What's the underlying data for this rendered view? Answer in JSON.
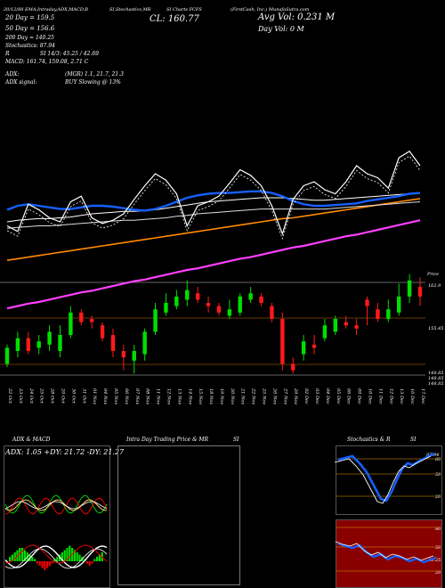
{
  "header": {
    "line1_left": "20/12/88  EMA,Intraday,ADX,MACD,B",
    "line1_mid": "SI,Stochastics,MR",
    "line1_mid2": "SI Charts FCFS",
    "line1_right": "(FirstCash, Inc.) MunafaSutra.com",
    "ma20": "20 Day = 159.5",
    "ma50": "50 Day = 156.6",
    "ma200": "200 Day = 140.25",
    "stoch": "Stochastics: 87.94",
    "rsi": "SI 14/3: 45.25 / 42.69",
    "r_label": "R",
    "macd": "MACD: 161.74, 159.08, 2.71 C",
    "adx": "ADX:",
    "adx_mgr": "(MGR) 1.1, 21.7, 21.3",
    "adx_signal": "ADX signal:",
    "buy_signal": "BUY Slowing @ 13%",
    "close": "CL: 160.77",
    "avg_vol": "Avg Vol: 0.231 M",
    "day_vol": "Day Vol: 0  M"
  },
  "price_labels": [
    "Price",
    "162.9",
    "155.45",
    "148.85",
    "148.85",
    "148.85"
  ],
  "chart_data": {
    "type": "candlestick",
    "dates": [
      "22 Oct",
      "23 Oct",
      "24 Oct",
      "25 Oct",
      "28 Oct",
      "29 Oct",
      "30 Oct",
      "31 Oct",
      "01 Nov",
      "04 Nov",
      "05 Nov",
      "06 Nov",
      "07 Nov",
      "08 Nov",
      "11 Nov",
      "12 Nov",
      "13 Nov",
      "14 Nov",
      "15 Nov",
      "18 Nov",
      "19 Nov",
      "20 Nov",
      "21 Nov",
      "22 Nov",
      "25 Nov",
      "26 Nov",
      "27 Nov",
      "29 Nov",
      "02 Dec",
      "03 Dec",
      "04 Dec",
      "05 Dec",
      "06 Dec",
      "09 Dec",
      "10 Dec",
      "11 Dec",
      "12 Dec",
      "13 Dec",
      "16 Dec",
      "17 Dec"
    ],
    "open": [
      150.0,
      152.0,
      154.0,
      152.5,
      153.0,
      152.0,
      154.5,
      158.0,
      157.0,
      156.0,
      154.5,
      152.0,
      150.5,
      151.5,
      155.0,
      158.0,
      159.0,
      160.0,
      161.0,
      159.5,
      159.0,
      157.5,
      158.0,
      160.0,
      160.5,
      159.0,
      157.0,
      150.0,
      151.5,
      153.0,
      154.0,
      155.0,
      156.5,
      156.0,
      160.0,
      158.5,
      157.0,
      158.0,
      160.5,
      162.0
    ],
    "close": [
      152.5,
      154.0,
      152.0,
      153.5,
      155.0,
      154.5,
      158.0,
      156.5,
      156.5,
      154.0,
      152.0,
      151.0,
      152.0,
      155.0,
      158.5,
      159.5,
      160.5,
      161.5,
      160.0,
      159.0,
      158.0,
      158.5,
      160.5,
      161.0,
      159.5,
      157.0,
      150.0,
      149.0,
      153.5,
      152.5,
      156.0,
      157.0,
      156.0,
      155.5,
      159.0,
      157.0,
      158.5,
      160.5,
      163.0,
      160.5
    ],
    "high": [
      153.0,
      155.0,
      155.0,
      154.5,
      156.0,
      156.0,
      159.0,
      158.5,
      157.5,
      156.5,
      155.5,
      153.0,
      153.0,
      155.5,
      159.5,
      161.0,
      161.5,
      163.0,
      162.0,
      160.5,
      159.5,
      160.0,
      161.0,
      162.0,
      161.0,
      159.5,
      158.0,
      151.0,
      154.5,
      154.5,
      157.0,
      157.5,
      157.5,
      157.0,
      160.5,
      159.5,
      160.0,
      162.5,
      164.0,
      163.5
    ],
    "low": [
      149.5,
      151.0,
      151.5,
      151.5,
      152.0,
      151.0,
      154.0,
      156.0,
      155.5,
      153.5,
      151.0,
      149.0,
      148.5,
      150.5,
      154.5,
      157.5,
      158.5,
      159.0,
      159.5,
      158.0,
      157.5,
      157.0,
      157.5,
      159.5,
      159.0,
      156.5,
      149.0,
      148.5,
      150.5,
      151.5,
      153.5,
      154.5,
      155.5,
      154.5,
      156.0,
      156.5,
      156.5,
      157.5,
      159.5,
      159.0
    ],
    "ema_blue": [
      165.5,
      166.0,
      166.2,
      166.0,
      165.8,
      165.6,
      165.6,
      165.8,
      166.0,
      166.0,
      165.9,
      165.7,
      165.5,
      165.4,
      165.6,
      166.0,
      166.5,
      167.0,
      167.3,
      167.5,
      167.6,
      167.6,
      167.7,
      167.8,
      167.8,
      167.6,
      167.2,
      166.6,
      166.2,
      166.0,
      166.0,
      166.1,
      166.2,
      166.3,
      166.6,
      166.8,
      167.0,
      167.2,
      167.5,
      167.6
    ],
    "ema_white": [
      164.0,
      164.2,
      164.3,
      164.4,
      164.4,
      164.5,
      164.6,
      164.8,
      165.0,
      165.1,
      165.2,
      165.3,
      165.3,
      165.4,
      165.5,
      165.7,
      165.9,
      166.1,
      166.3,
      166.5,
      166.6,
      166.7,
      166.8,
      166.9,
      167.0,
      167.0,
      167.0,
      166.9,
      166.8,
      166.7,
      166.7,
      166.8,
      166.9,
      167.0,
      167.1,
      167.2,
      167.3,
      167.4,
      167.5,
      167.6
    ],
    "ema_white2": [
      163.2,
      163.3,
      163.4,
      163.5,
      163.5,
      163.6,
      163.7,
      163.8,
      163.9,
      164.0,
      164.1,
      164.2,
      164.2,
      164.3,
      164.4,
      164.5,
      164.7,
      164.8,
      165.0,
      165.1,
      165.2,
      165.3,
      165.4,
      165.5,
      165.6,
      165.6,
      165.6,
      165.6,
      165.6,
      165.6,
      165.6,
      165.7,
      165.8,
      165.9,
      166.0,
      166.1,
      166.2,
      166.3,
      166.4,
      166.5
    ],
    "ema_orange": [
      159.2,
      159.4,
      159.6,
      159.8,
      160.0,
      160.2,
      160.4,
      160.6,
      160.8,
      161.0,
      161.2,
      161.4,
      161.6,
      161.8,
      162.0,
      162.2,
      162.4,
      162.6,
      162.8,
      163.0,
      163.2,
      163.4,
      163.6,
      163.8,
      164.0,
      164.2,
      164.4,
      164.5,
      164.7,
      164.9,
      165.1,
      165.3,
      165.5,
      165.7,
      165.9,
      166.1,
      166.3,
      166.5,
      166.7,
      166.9
    ],
    "ema_magenta": [
      153.2,
      153.5,
      153.8,
      154.0,
      154.3,
      154.6,
      154.9,
      155.2,
      155.4,
      155.7,
      156.0,
      156.3,
      156.6,
      156.8,
      157.1,
      157.4,
      157.7,
      158.0,
      158.2,
      158.5,
      158.8,
      159.1,
      159.4,
      159.6,
      159.9,
      160.2,
      160.5,
      160.8,
      161.0,
      161.3,
      161.6,
      161.9,
      162.2,
      162.4,
      162.7,
      163.0,
      163.3,
      163.6,
      163.9,
      164.2
    ],
    "price_line": [
      163.5,
      162.8,
      166.2,
      165.5,
      164.5,
      164.0,
      166.5,
      167.2,
      164.5,
      163.8,
      164.2,
      165.0,
      166.8,
      168.5,
      170.0,
      169.2,
      167.5,
      163.5,
      166.0,
      166.5,
      167.2,
      168.8,
      170.5,
      169.8,
      168.5,
      166.0,
      162.5,
      166.8,
      168.5,
      169.0,
      168.0,
      167.5,
      169.0,
      171.0,
      170.0,
      169.5,
      168.2,
      172.0,
      172.8,
      171.0
    ]
  },
  "panels": {
    "adx_title": "ADX  & MACD",
    "adx_values": "ADX: 1.05  +DY: 21.72  -DY: 21.27",
    "intraday_title": "Intra  Day Trading Price  & MR",
    "intraday_si": "SI",
    "stoch_title": "Stochastics  & R",
    "stoch_si": "SI",
    "stoch_val": "87.94",
    "stoch_ticks": [
      "80",
      "50",
      "20"
    ],
    "rsi_val": "45.25",
    "rsi_ticks": [
      "80",
      "50",
      "20"
    ]
  },
  "colors": {
    "up": "#00e000",
    "down": "#ff1a1a",
    "ema_blue": "#1560ff",
    "ema_orange": "#ff8a00",
    "ema_magenta": "#ff40ff",
    "rsi_bg": "#8a0000"
  }
}
